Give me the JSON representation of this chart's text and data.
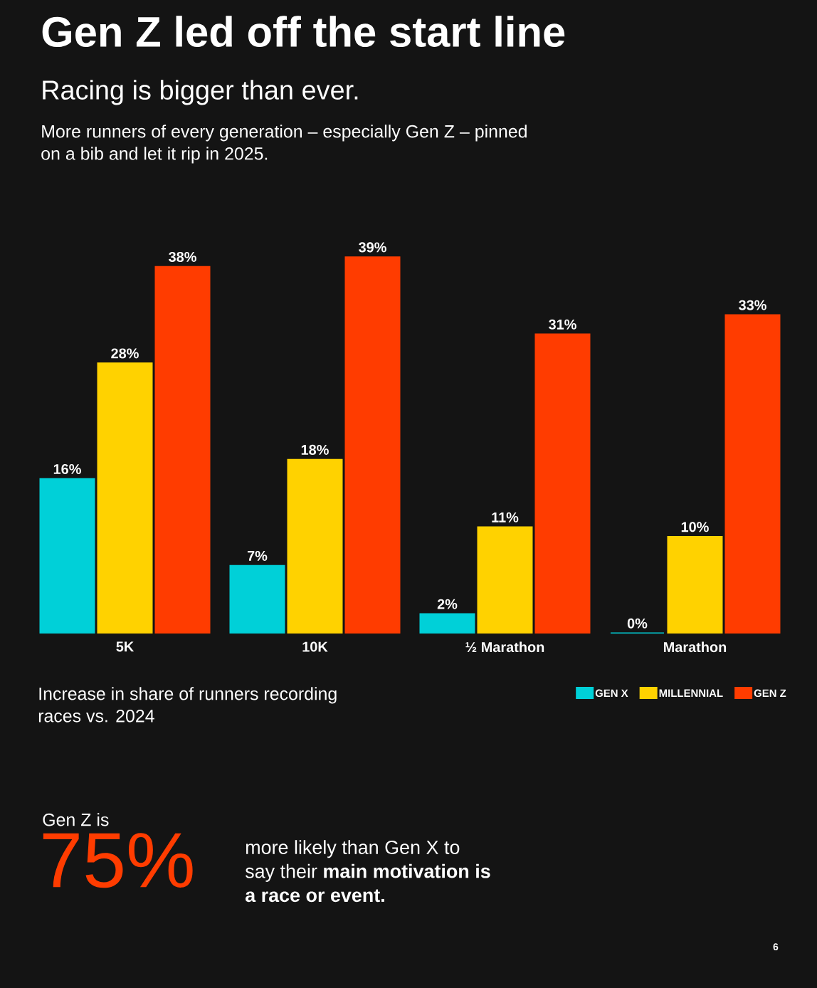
{
  "chart_data": {
    "type": "bar",
    "title": "Gen Z led off the start line",
    "subtitle": "Racing is bigger than ever.",
    "categories": [
      "5K",
      "10K",
      "½ Marathon",
      "Marathon"
    ],
    "series": [
      {
        "name": "GEN X",
        "color": "#00d0d8",
        "values": [
          16,
          7,
          2,
          0
        ],
        "value_labels": [
          "16%",
          "7%",
          "2%",
          "0%"
        ]
      },
      {
        "name": "MILLENNIAL",
        "color": "#ffd200",
        "values": [
          28,
          18,
          11,
          10
        ],
        "value_labels": [
          "28%",
          "18%",
          "11%",
          "10%"
        ]
      },
      {
        "name": "GEN Z",
        "color": "#ff3c00",
        "values": [
          38,
          39,
          31,
          33
        ],
        "value_labels": [
          "38%",
          "39%",
          "31%",
          "33%"
        ]
      }
    ],
    "legend": "bottom right",
    "tick_labels": "x",
    "annotations": [
      "More runners of every generation – especially Gen Z – pinned on a bib and let it rip in 2025.",
      "Increase in share of runners recording races vs. 2024",
      "Gen Z is",
      "75%",
      "more likely than Gen X to say their **main motivation is a race or event.**",
      "6"
    ]
  }
}
